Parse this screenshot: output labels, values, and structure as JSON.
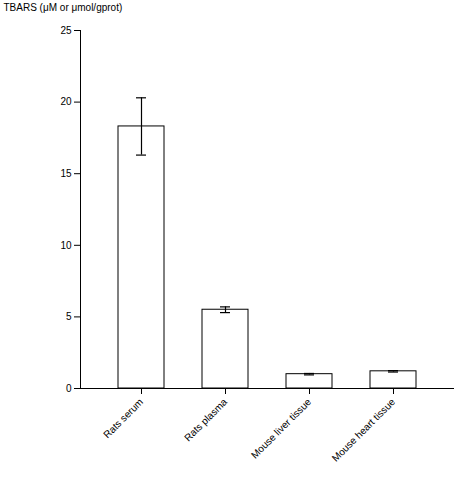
{
  "chart_data": {
    "type": "bar",
    "categories": [
      "Rats serum",
      "Rats plasma",
      "Mouse liver tissue",
      "Mouse heart tissue"
    ],
    "values": [
      18.3,
      5.5,
      1.0,
      1.2
    ],
    "errors": [
      2.0,
      0.2,
      0.05,
      0.05
    ],
    "color": "#ffffff",
    "ylabel": "TBARS (μM or μmol/gprot)",
    "ylim": [
      0,
      25
    ],
    "yticks": [
      0,
      5,
      10,
      15,
      20,
      25
    ],
    "grid": false
  }
}
